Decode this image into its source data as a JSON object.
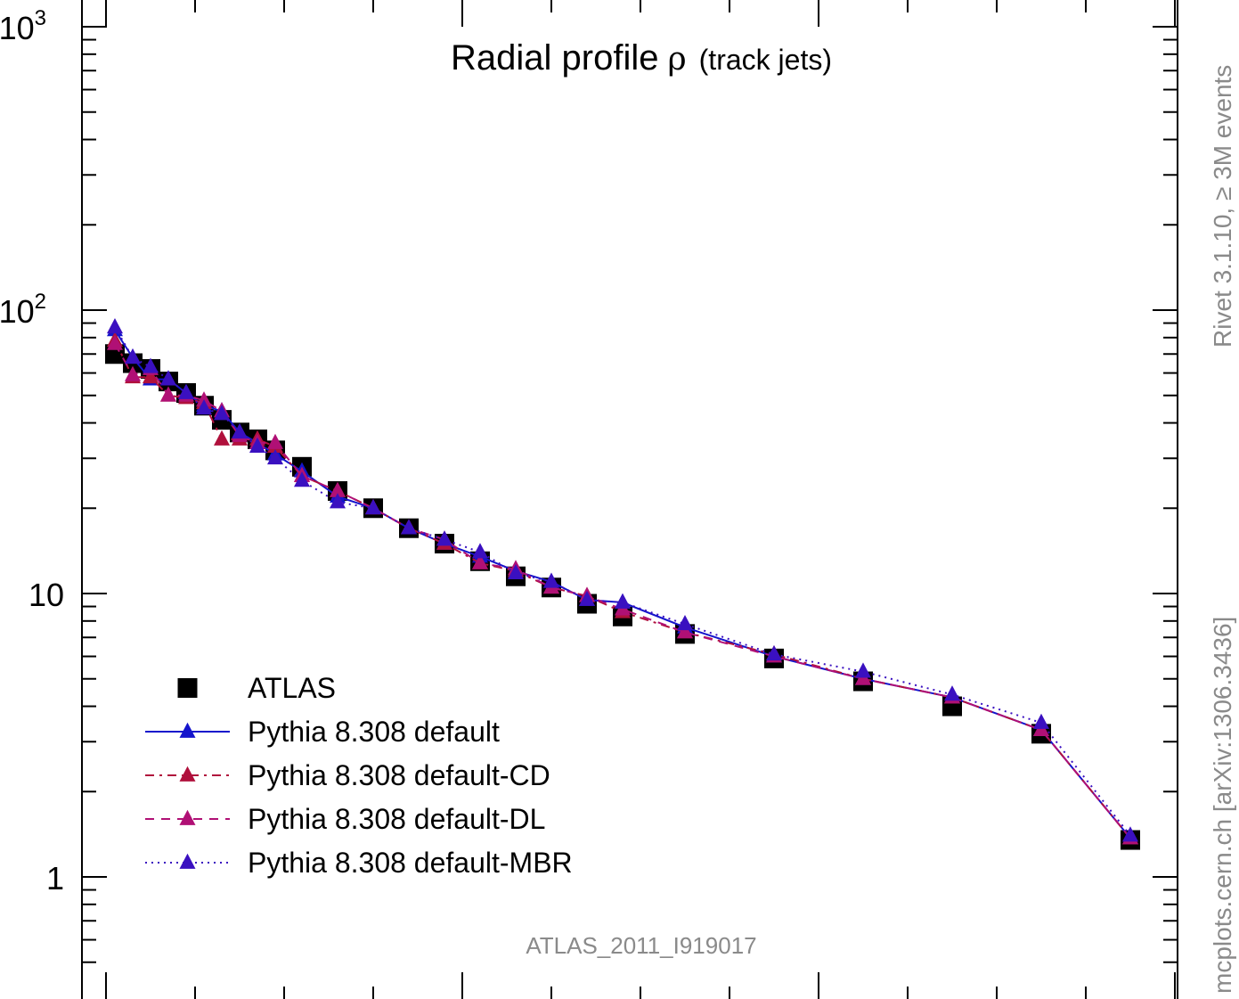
{
  "chart_data": {
    "type": "scatter",
    "title": "Radial profile",
    "title_symbol": "ρ",
    "title_suffix": "(track jets)",
    "xlim": [
      0,
      0.6
    ],
    "ylim": [
      0.45,
      1000
    ],
    "y_scale": "log",
    "y_ticks": [
      {
        "value": 1,
        "base": "1",
        "exp": ""
      },
      {
        "value": 10,
        "base": "10",
        "exp": ""
      },
      {
        "value": 100,
        "base": "10",
        "exp": "2"
      },
      {
        "value": 1000,
        "base": "10",
        "exp": "3"
      }
    ],
    "x_major_ticks": [
      0,
      0.2,
      0.4,
      0.6
    ],
    "x_minor_step": 0.05,
    "legend_position": "bottom-left",
    "watermark": "ATLAS_2011_I919017",
    "side_text_top": "Rivet 3.1.10, ≥ 3M events",
    "side_text_bottom": "mcplots.cern.ch [arXiv:1306.3436]",
    "x": [
      0.005,
      0.015,
      0.025,
      0.035,
      0.045,
      0.055,
      0.065,
      0.075,
      0.085,
      0.095,
      0.11,
      0.13,
      0.15,
      0.17,
      0.19,
      0.21,
      0.23,
      0.25,
      0.27,
      0.29,
      0.325,
      0.375,
      0.425,
      0.475,
      0.525,
      0.575
    ],
    "series": [
      {
        "name": "ATLAS",
        "color": "#000000",
        "marker": "square",
        "line": "none",
        "values": [
          70,
          65,
          62,
          56,
          51,
          46,
          41,
          37,
          35,
          32,
          28,
          23,
          20,
          17,
          15,
          13,
          11.5,
          10.5,
          9.2,
          8.3,
          7.2,
          5.9,
          4.9,
          4.0,
          3.2,
          1.35
        ]
      },
      {
        "name": "Pythia 8.308 default",
        "color": "#1414cc",
        "marker": "triangle",
        "line": "solid",
        "values": [
          85,
          68,
          57,
          57,
          51,
          46,
          44,
          37,
          34,
          31,
          27,
          22,
          20,
          17,
          15,
          13.5,
          12,
          11,
          9.5,
          9.3,
          7.6,
          6.0,
          5.0,
          4.3,
          3.3,
          1.37
        ]
      },
      {
        "name": "Pythia 8.308 default-CD",
        "color": "#b0103c",
        "marker": "triangle",
        "line": "dashdot",
        "values": [
          78,
          58,
          58,
          50,
          49,
          47,
          35,
          35,
          35,
          33,
          26,
          23,
          20,
          17,
          15,
          12.8,
          12,
          10.5,
          9.8,
          8.6,
          7.3,
          6.1,
          5.0,
          4.3,
          3.3,
          1.37
        ]
      },
      {
        "name": "Pythia 8.308 default-DL",
        "color": "#b01075",
        "marker": "triangle",
        "line": "dashed",
        "values": [
          76,
          59,
          62,
          50,
          50,
          48,
          44,
          36,
          34,
          34,
          26,
          23,
          20,
          17,
          15.5,
          12.8,
          12.2,
          10.5,
          9.8,
          8.8,
          7.3,
          6.0,
          5.0,
          4.3,
          3.3,
          1.37
        ]
      },
      {
        "name": "Pythia 8.308 default-MBR",
        "color": "#3a10c0",
        "marker": "triangle",
        "line": "dotted",
        "values": [
          87,
          68,
          63,
          57,
          51,
          45,
          43,
          37,
          33,
          30,
          25,
          21,
          20,
          17,
          15.5,
          14,
          11.8,
          11,
          9.5,
          9.3,
          7.8,
          6.1,
          5.3,
          4.4,
          3.5,
          1.4
        ]
      }
    ]
  }
}
